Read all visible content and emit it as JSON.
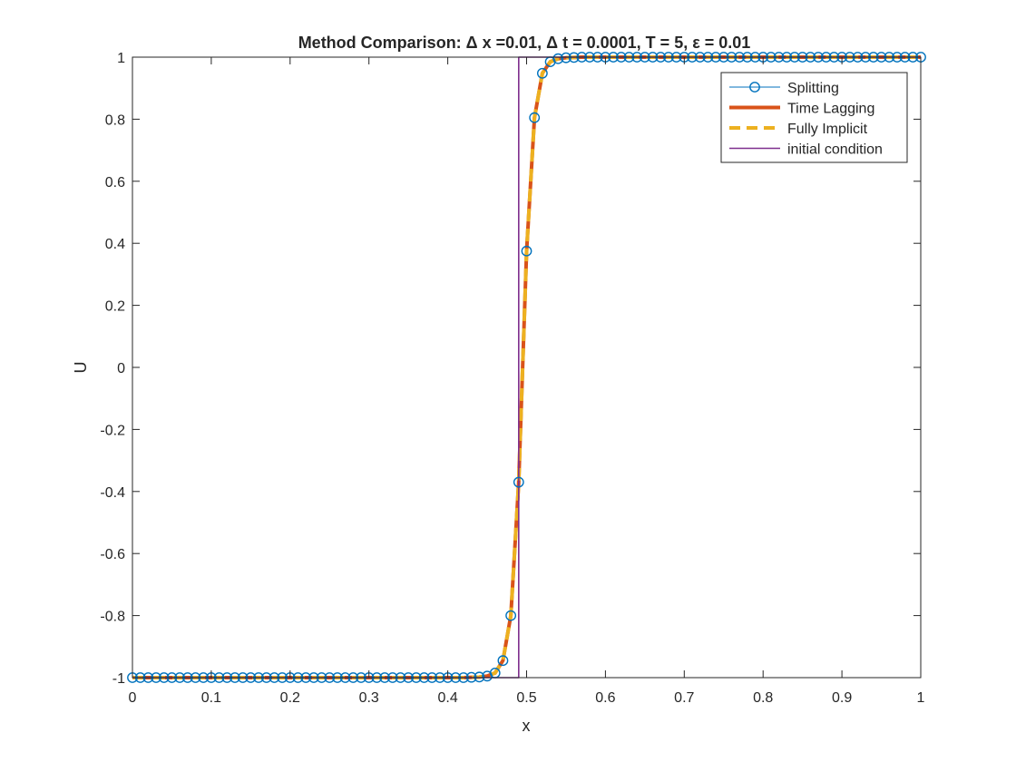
{
  "chart_data": {
    "type": "line",
    "title": "Method Comparison: Δ x =0.01, Δ t = 0.0001, T = 5, ε = 0.01",
    "xlabel": "x",
    "ylabel": "U",
    "xlim": [
      0,
      1
    ],
    "ylim": [
      -1,
      1
    ],
    "xticks": [
      0,
      0.1,
      0.2,
      0.3,
      0.4,
      0.5,
      0.6,
      0.7,
      0.8,
      0.9,
      1
    ],
    "yticks": [
      -1,
      -0.8,
      -0.6,
      -0.4,
      -0.2,
      0,
      0.2,
      0.4,
      0.6,
      0.8,
      1
    ],
    "xtick_labels": [
      "0",
      "0.1",
      "0.2",
      "0.3",
      "0.4",
      "0.5",
      "0.6",
      "0.7",
      "0.8",
      "0.9",
      "1"
    ],
    "ytick_labels": [
      "-1",
      "-0.8",
      "-0.6",
      "-0.4",
      "-0.2",
      "0",
      "0.2",
      "0.4",
      "0.6",
      "0.8",
      "1"
    ],
    "grid": false,
    "legend_position": "top-right",
    "x": [
      0,
      0.01,
      0.02,
      0.03,
      0.04,
      0.05,
      0.06,
      0.07,
      0.08,
      0.09,
      0.1,
      0.11,
      0.12,
      0.13,
      0.14,
      0.15,
      0.16,
      0.17,
      0.18,
      0.19,
      0.2,
      0.21,
      0.22,
      0.23,
      0.24,
      0.25,
      0.26,
      0.27,
      0.28,
      0.29,
      0.3,
      0.31,
      0.32,
      0.33,
      0.34,
      0.35,
      0.36,
      0.37,
      0.38,
      0.39,
      0.4,
      0.41,
      0.42,
      0.43,
      0.44,
      0.45,
      0.46,
      0.47,
      0.48,
      0.49,
      0.5,
      0.51,
      0.52,
      0.53,
      0.54,
      0.55,
      0.56,
      0.57,
      0.58,
      0.59,
      0.6,
      0.61,
      0.62,
      0.63,
      0.64,
      0.65,
      0.66,
      0.67,
      0.68,
      0.69,
      0.7,
      0.71,
      0.72,
      0.73,
      0.74,
      0.75,
      0.76,
      0.77,
      0.78,
      0.79,
      0.8,
      0.81,
      0.82,
      0.83,
      0.84,
      0.85,
      0.86,
      0.87,
      0.88,
      0.89,
      0.9,
      0.91,
      0.92,
      0.93,
      0.94,
      0.95,
      0.96,
      0.97,
      0.98,
      0.99,
      1.0
    ],
    "series": [
      {
        "name": "Splitting",
        "color": "#0072BD",
        "style": "line-circle",
        "values": [
          -1,
          -1,
          -1,
          -1,
          -1,
          -1,
          -1,
          -1,
          -1,
          -1,
          -1,
          -1,
          -1,
          -1,
          -1,
          -1,
          -1,
          -1,
          -1,
          -1,
          -1,
          -1,
          -1,
          -1,
          -1,
          -1,
          -1,
          -1,
          -1,
          -1,
          -1,
          -1,
          -1,
          -1,
          -1,
          -1,
          -1,
          -1,
          -1,
          -1,
          -1,
          -1,
          -1,
          -0.999,
          -0.998,
          -0.995,
          -0.985,
          -0.945,
          -0.8,
          -0.37,
          0.375,
          0.805,
          0.948,
          0.985,
          0.995,
          0.998,
          0.999,
          1,
          1,
          1,
          1,
          1,
          1,
          1,
          1,
          1,
          1,
          1,
          1,
          1,
          1,
          1,
          1,
          1,
          1,
          1,
          1,
          1,
          1,
          1,
          1,
          1,
          1,
          1,
          1,
          1,
          1,
          1,
          1,
          1,
          1,
          1,
          1,
          1,
          1,
          1,
          1,
          1,
          1,
          1,
          1
        ]
      },
      {
        "name": "Time Lagging",
        "color": "#D95319",
        "style": "solid-thick",
        "values": [
          -1,
          -1,
          -1,
          -1,
          -1,
          -1,
          -1,
          -1,
          -1,
          -1,
          -1,
          -1,
          -1,
          -1,
          -1,
          -1,
          -1,
          -1,
          -1,
          -1,
          -1,
          -1,
          -1,
          -1,
          -1,
          -1,
          -1,
          -1,
          -1,
          -1,
          -1,
          -1,
          -1,
          -1,
          -1,
          -1,
          -1,
          -1,
          -1,
          -1,
          -1,
          -1,
          -1,
          -0.999,
          -0.998,
          -0.995,
          -0.985,
          -0.945,
          -0.8,
          -0.37,
          0.375,
          0.805,
          0.948,
          0.985,
          0.995,
          0.998,
          0.999,
          1,
          1,
          1,
          1,
          1,
          1,
          1,
          1,
          1,
          1,
          1,
          1,
          1,
          1,
          1,
          1,
          1,
          1,
          1,
          1,
          1,
          1,
          1,
          1,
          1,
          1,
          1,
          1,
          1,
          1,
          1,
          1,
          1,
          1,
          1,
          1,
          1,
          1,
          1,
          1,
          1,
          1,
          1,
          1
        ]
      },
      {
        "name": "Fully Implicit",
        "color": "#EDB120",
        "style": "dashed-thick",
        "values": [
          -1,
          -1,
          -1,
          -1,
          -1,
          -1,
          -1,
          -1,
          -1,
          -1,
          -1,
          -1,
          -1,
          -1,
          -1,
          -1,
          -1,
          -1,
          -1,
          -1,
          -1,
          -1,
          -1,
          -1,
          -1,
          -1,
          -1,
          -1,
          -1,
          -1,
          -1,
          -1,
          -1,
          -1,
          -1,
          -1,
          -1,
          -1,
          -1,
          -1,
          -1,
          -1,
          -1,
          -0.999,
          -0.998,
          -0.995,
          -0.985,
          -0.945,
          -0.8,
          -0.37,
          0.375,
          0.805,
          0.948,
          0.985,
          0.995,
          0.998,
          0.999,
          1,
          1,
          1,
          1,
          1,
          1,
          1,
          1,
          1,
          1,
          1,
          1,
          1,
          1,
          1,
          1,
          1,
          1,
          1,
          1,
          1,
          1,
          1,
          1,
          1,
          1,
          1,
          1,
          1,
          1,
          1,
          1,
          1,
          1,
          1,
          1,
          1,
          1,
          1,
          1,
          1,
          1,
          1,
          1
        ]
      },
      {
        "name": "initial condition",
        "color": "#7E2F8E",
        "style": "solid-thin",
        "points": [
          [
            0,
            -1
          ],
          [
            0.49,
            -1
          ],
          [
            0.49,
            1
          ],
          [
            1,
            1
          ]
        ]
      }
    ]
  }
}
